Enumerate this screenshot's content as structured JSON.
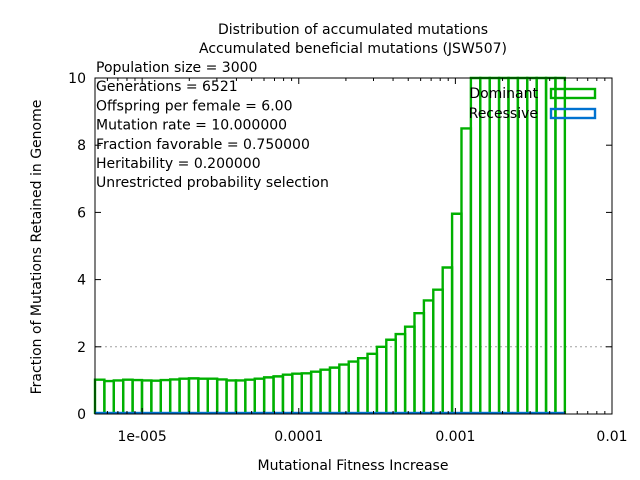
{
  "chart_data": {
    "type": "bar",
    "title": "Distribution of accumulated mutations",
    "subtitle": "Accumulated beneficial mutations (JSW507)",
    "xlabel": "Mutational Fitness Increase",
    "ylabel": "Fraction of Mutations Retained in Genome",
    "x_scale": "log",
    "xlim": [
      5e-06,
      0.01
    ],
    "ylim": [
      0,
      10
    ],
    "x_ticks": [
      {
        "value": 1e-05,
        "label": "1e-005"
      },
      {
        "value": 0.0001,
        "label": "0.0001"
      },
      {
        "value": 0.001,
        "label": "0.001"
      },
      {
        "value": 0.01,
        "label": "0.01"
      }
    ],
    "y_ticks": [
      0,
      2,
      4,
      6,
      8,
      10
    ],
    "grid": "dotted horizontal line at y=2",
    "legend_position": "top-right",
    "annotations": [
      "Population size = 3000",
      "Generations = 6521",
      "Offspring per female = 6.00",
      "Mutation rate = 10.000000",
      "Fraction favorable = 0.750000",
      "Heritability = 0.200000",
      "Unrestricted probability selection"
    ],
    "bin_edges_x": {
      "first_left": 5e-06,
      "last_right": 0.005,
      "count": 50
    },
    "series": [
      {
        "name": "Dominant",
        "color": "#00b000",
        "values": [
          1.02,
          0.98,
          1.0,
          1.02,
          1.01,
          1.0,
          0.99,
          1.01,
          1.03,
          1.05,
          1.06,
          1.05,
          1.05,
          1.03,
          1.0,
          1.0,
          1.02,
          1.05,
          1.09,
          1.12,
          1.17,
          1.2,
          1.21,
          1.26,
          1.32,
          1.38,
          1.47,
          1.56,
          1.66,
          1.79,
          2.0,
          2.21,
          2.38,
          2.6,
          3.0,
          3.38,
          3.7,
          4.36,
          5.96,
          8.5,
          10,
          10,
          10,
          10,
          10,
          10,
          10,
          10,
          10,
          10
        ]
      },
      {
        "name": "Recessive",
        "color": "#0072d0",
        "values": [
          0,
          0,
          0,
          0,
          0,
          0,
          0,
          0,
          0,
          0,
          0,
          0,
          0,
          0,
          0,
          0,
          0,
          0,
          0,
          0,
          0,
          0,
          0,
          0,
          0,
          0,
          0,
          0,
          0,
          0,
          0,
          0,
          0,
          0,
          0,
          0,
          0,
          0,
          0,
          0,
          0,
          0,
          0,
          0,
          0,
          0,
          0,
          0,
          0,
          0
        ]
      }
    ]
  }
}
